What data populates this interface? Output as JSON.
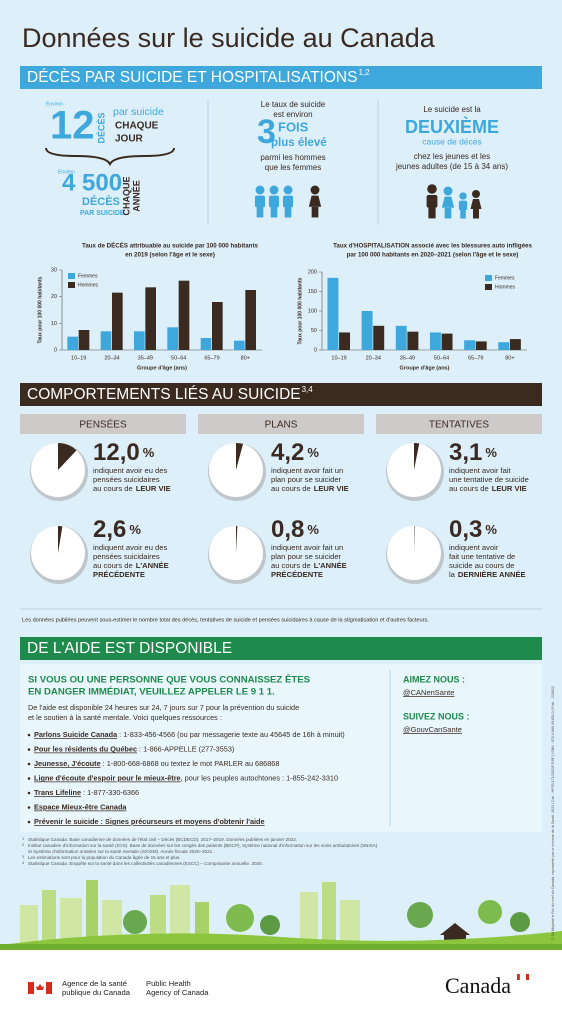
{
  "title": "Données sur le suicide au Canada",
  "section1": {
    "title": "DÉCÈS PAR SUICIDE ET HOSPITALISATIONS",
    "sup": "1,2"
  },
  "stats": {
    "daily": {
      "qualifier": "Environ",
      "number": "12",
      "unit": "DÉCÈS",
      "line1": "par suicide",
      "line2": "CHAQUE",
      "line3": "JOUR"
    },
    "yearly": {
      "qualifier": "Environ",
      "number": "4 500",
      "unit": "DÉCÈS",
      "line1": "PAR SUICIDE",
      "line2": "CHAQUE",
      "line3": "ANNÉE"
    },
    "ratio": {
      "intro": [
        "Le taux de suicide",
        "est environ"
      ],
      "number": "3",
      "unit": "FOIS",
      "unit2": "plus élevé",
      "outro": [
        "parmi les hommes",
        "que les femmes"
      ]
    },
    "rank": {
      "intro": "Le suicide est la",
      "rank": "DEUXIÈME",
      "line": "cause de décès",
      "outro": [
        "chez les jeunes et les",
        "jeunes adultes (de 15 à 34 ans)"
      ]
    }
  },
  "chart_data": [
    {
      "type": "bar",
      "title": [
        "Taux de DÉCÈS attribuable au suicide par 100 000 habitants",
        "en 2019 (selon l'âge et le sexe)"
      ],
      "categories": [
        "10–19",
        "20–34",
        "35–49",
        "50–64",
        "65–79",
        "80+"
      ],
      "series": [
        {
          "name": "Femmes",
          "color": "#3ea8dc",
          "values": [
            5,
            7,
            7,
            8.5,
            4.5,
            3.5
          ]
        },
        {
          "name": "Hommes",
          "color": "#3b2a20",
          "values": [
            7.5,
            21.5,
            23.5,
            26,
            18,
            22.5
          ]
        }
      ],
      "ylim": [
        0,
        30
      ],
      "yticks": [
        0,
        10,
        20,
        30
      ],
      "grid": false,
      "legend": "upper left",
      "ylabel": "Taux pour 100 000 habitants",
      "xlabel": "Groupe d'âge (ans)"
    },
    {
      "type": "bar",
      "title": [
        "Taux d'HOSPITALISATION associé avec les blessures auto infligées",
        "par 100 000 habitants en 2020–2021 (selon l'âge et le sexe)"
      ],
      "categories": [
        "10–19",
        "20–34",
        "35–49",
        "50–64",
        "65–79",
        "80+"
      ],
      "series": [
        {
          "name": "Femmes",
          "color": "#3ea8dc",
          "values": [
            185,
            100,
            62,
            45,
            25,
            20
          ]
        },
        {
          "name": "Hommes",
          "color": "#3b2a20",
          "values": [
            45,
            62,
            47,
            42,
            22,
            28
          ]
        }
      ],
      "ylim": [
        0,
        200
      ],
      "yticks": [
        0,
        50,
        100,
        150,
        200
      ],
      "grid": false,
      "legend": "upper right",
      "ylabel": "Taux pour 100 000 habitants",
      "xlabel": "Groupe d'âge (ans)"
    }
  ],
  "section2": {
    "title": "COMPORTEMENTS LIÉS AU SUICIDE",
    "sup": "3,4",
    "slice_color": "#3b2a20"
  },
  "behaviours": [
    {
      "heading": "PENSÉES",
      "items": [
        {
          "value": 12.0,
          "value_label": "12,0",
          "unit": "%",
          "desc": [
            "indiquent avoir eu des",
            "pensées suicidaires",
            "au cours de"
          ],
          "emph": [
            "LEUR VIE"
          ]
        },
        {
          "value": 2.6,
          "value_label": "2,6",
          "unit": "%",
          "desc": [
            "indiquent avoir eu des",
            "pensées suicidaires",
            "au cours de"
          ],
          "emph": [
            "L'ANNÉE",
            "PRÉCÉDENTE"
          ]
        }
      ]
    },
    {
      "heading": "PLANS",
      "items": [
        {
          "value": 4.2,
          "value_label": "4,2",
          "unit": "%",
          "desc": [
            "indiquent avoir fait un",
            "plan pour se suicider",
            "au cours de"
          ],
          "emph": [
            "LEUR VIE"
          ]
        },
        {
          "value": 0.8,
          "value_label": "0,8",
          "unit": "%",
          "desc": [
            "indiquent avoir fait un",
            "plan pour se suicider",
            "au cours de"
          ],
          "emph": [
            "L'ANNÉE",
            "PRÉCÉDENTE"
          ]
        }
      ]
    },
    {
      "heading": "TENTATIVES",
      "items": [
        {
          "value": 3.1,
          "value_label": "3,1",
          "unit": "%",
          "desc": [
            "indiquent avoir fait",
            "une tentative de suicide",
            "au cours de"
          ],
          "emph": [
            "LEUR VIE"
          ]
        },
        {
          "value": 0.3,
          "value_label": "0,3",
          "unit": "%",
          "desc": [
            "indiquent avoir",
            "fait une tentative de",
            "suicide au cours de",
            "la"
          ],
          "emph": [
            "DERNIÈRE ANNÉE"
          ]
        }
      ]
    }
  ],
  "data_note": "Les données publiées peuvent sous-estimer le nombre total des décès, tentatives de suicide et pensées suicidaires à cause de la stigmatisation et d'autres facteurs.",
  "section3": {
    "title": "DE L'AIDE EST DISPONIBLE"
  },
  "help": {
    "heading": [
      "SI VOUS OU UNE PERSONNE QUE VOUS CONNAISSEZ ÊTES",
      "EN DANGER IMMÉDIAT, VEUILLEZ APPELER LE 9 1 1."
    ],
    "intro": [
      "De l'aide est disponible 24 heures sur 24, 7 jours sur 7 pour la prévention du suicide",
      "et le soutien à la santé mentale. Voici quelques ressources :"
    ],
    "resources": [
      {
        "link": "Parlons Suicide Canada",
        "text": " : 1-833-456-4566 (ou par messagerie texte au 45645 de 16h à minuit)"
      },
      {
        "link": "Pour les résidents du Québec",
        "text": " : 1-866-APPELLE (277-3553)"
      },
      {
        "link": "Jeunesse, J'écoute",
        "text": " : 1-800-668-6868 ou textez le mot PARLER au 686868"
      },
      {
        "link": "Ligne d'écoute d'espoir pour le mieux-être",
        "text": ", pour les peuples autochtones : 1-855-242-3310"
      },
      {
        "link": "Trans Lifeline",
        "text": " : 1-877-330-6366"
      },
      {
        "link": "Espace Mieux-être Canada"
      },
      {
        "link": "Prévenir le suicide : Signes précurseurs et moyens d'obtenir l'aide"
      }
    ],
    "social": [
      {
        "label": "AIMEZ NOUS :",
        "handle": "@CANenSante"
      },
      {
        "label": "SUIVEZ NOUS :",
        "handle": "@GouvCanSante"
      }
    ]
  },
  "footnotes": [
    {
      "n": "1",
      "lines": [
        "Statistique Canada. Base canadienne de données de l'état civil – Décès (BCDECD). 2017–2019. Données publiées en janvier 2022."
      ]
    },
    {
      "n": "2",
      "lines": [
        "Institut canadien d'information sur la santé (ICIS). Base de données sur les congés des patients (BDCP), Système national d'information sur les soins ambulatoires (SNISA)",
        "et Système d'information ontarien sur la santé mentale (SIOSM). Année fiscale 2020–2021."
      ]
    },
    {
      "n": "3",
      "lines": [
        "Les estimations sont pour la population du Canada âgée de 15 ans et plus."
      ]
    },
    {
      "n": "4",
      "lines": [
        "Statistique Canada. Enquête sur la santé dans les collectivités canadiennes (ESCC) – Composante annuelle. 2020."
      ]
    }
  ],
  "side_note": "© Sa Majesté le Roi du chef du Canada, représenté par le ministre de la Santé, 2023 | Cat. : HP35-171/2023F-PDF | ISBN : 978-0-660-49150-0 | Pub. : 220622",
  "footer": {
    "agency_fr": [
      "Agence de la santé",
      "publique du Canada"
    ],
    "agency_en": [
      "Public Health",
      "Agency of Canada"
    ],
    "wordmark": "Canada"
  }
}
